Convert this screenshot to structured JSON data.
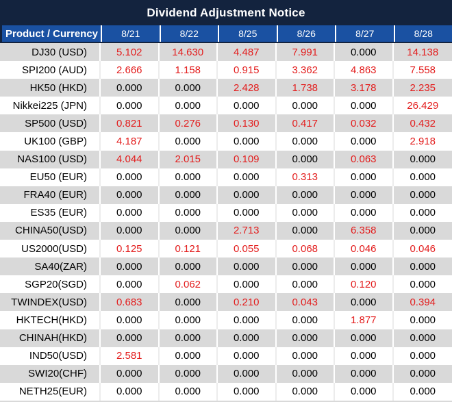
{
  "title": "Dividend Adjustment Notice",
  "table": {
    "header": {
      "product_label": "Product / Currency",
      "dates": [
        "8/21",
        "8/22",
        "8/25",
        "8/26",
        "8/27",
        "8/28"
      ]
    },
    "rows": [
      {
        "product": "DJ30 (USD)",
        "values": [
          "5.102",
          "14.630",
          "4.487",
          "7.991",
          "0.000",
          "14.138"
        ]
      },
      {
        "product": "SPI200 (AUD)",
        "values": [
          "2.666",
          "1.158",
          "0.915",
          "3.362",
          "4.863",
          "7.558"
        ]
      },
      {
        "product": "HK50 (HKD)",
        "values": [
          "0.000",
          "0.000",
          "2.428",
          "1.738",
          "3.178",
          "2.235"
        ]
      },
      {
        "product": "Nikkei225 (JPN)",
        "values": [
          "0.000",
          "0.000",
          "0.000",
          "0.000",
          "0.000",
          "26.429"
        ]
      },
      {
        "product": "SP500 (USD)",
        "values": [
          "0.821",
          "0.276",
          "0.130",
          "0.417",
          "0.032",
          "0.432"
        ]
      },
      {
        "product": "UK100 (GBP)",
        "values": [
          "4.187",
          "0.000",
          "0.000",
          "0.000",
          "0.000",
          "2.918"
        ]
      },
      {
        "product": "NAS100 (USD)",
        "values": [
          "4.044",
          "2.015",
          "0.109",
          "0.000",
          "0.063",
          "0.000"
        ]
      },
      {
        "product": "EU50 (EUR)",
        "values": [
          "0.000",
          "0.000",
          "0.000",
          "0.313",
          "0.000",
          "0.000"
        ]
      },
      {
        "product": "FRA40 (EUR)",
        "values": [
          "0.000",
          "0.000",
          "0.000",
          "0.000",
          "0.000",
          "0.000"
        ]
      },
      {
        "product": "ES35 (EUR)",
        "values": [
          "0.000",
          "0.000",
          "0.000",
          "0.000",
          "0.000",
          "0.000"
        ]
      },
      {
        "product": "CHINA50(USD)",
        "values": [
          "0.000",
          "0.000",
          "2.713",
          "0.000",
          "6.358",
          "0.000"
        ]
      },
      {
        "product": "US2000(USD)",
        "values": [
          "0.125",
          "0.121",
          "0.055",
          "0.068",
          "0.046",
          "0.046"
        ]
      },
      {
        "product": "SA40(ZAR)",
        "values": [
          "0.000",
          "0.000",
          "0.000",
          "0.000",
          "0.000",
          "0.000"
        ]
      },
      {
        "product": "SGP20(SGD)",
        "values": [
          "0.000",
          "0.062",
          "0.000",
          "0.000",
          "0.120",
          "0.000"
        ]
      },
      {
        "product": "TWINDEX(USD)",
        "values": [
          "0.683",
          "0.000",
          "0.210",
          "0.043",
          "0.000",
          "0.394"
        ]
      },
      {
        "product": "HKTECH(HKD)",
        "values": [
          "0.000",
          "0.000",
          "0.000",
          "0.000",
          "1.877",
          "0.000"
        ]
      },
      {
        "product": "CHINAH(HKD)",
        "values": [
          "0.000",
          "0.000",
          "0.000",
          "0.000",
          "0.000",
          "0.000"
        ]
      },
      {
        "product": "IND50(USD)",
        "values": [
          "2.581",
          "0.000",
          "0.000",
          "0.000",
          "0.000",
          "0.000"
        ]
      },
      {
        "product": "SWI20(CHF)",
        "values": [
          "0.000",
          "0.000",
          "0.000",
          "0.000",
          "0.000",
          "0.000"
        ]
      },
      {
        "product": "NETH25(EUR)",
        "values": [
          "0.000",
          "0.000",
          "0.000",
          "0.000",
          "0.000",
          "0.000"
        ]
      }
    ]
  },
  "colors": {
    "title_bar_bg": "#13233e",
    "header_bg": "#1a51a2",
    "row_bg": "#ffffff",
    "row_alt_bg": "#d9d9d9",
    "value_positive": "#e31d1d",
    "value_zero": "#000000",
    "header_text": "#ffffff"
  }
}
